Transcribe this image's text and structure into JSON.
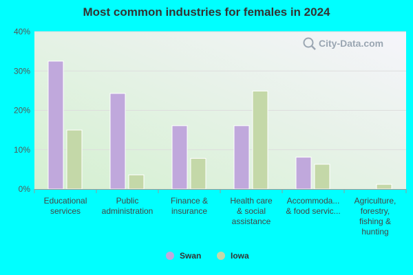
{
  "title": "Most common industries for females in 2024",
  "watermark": "City-Data.com",
  "colors": {
    "background": "#00ffff",
    "swan": "#c0a8dc",
    "iowa": "#c4d8a8",
    "grid": "#dddddd"
  },
  "chart_data": {
    "type": "bar",
    "title": "Most common industries for females in 2024",
    "xlabel": "",
    "ylabel": "",
    "ylim": [
      0,
      40
    ],
    "y_ticks": [
      "0%",
      "10%",
      "20%",
      "30%",
      "40%"
    ],
    "y_tick_values": [
      0,
      10,
      20,
      30,
      40
    ],
    "grid": true,
    "legend": "bottom",
    "categories": [
      [
        "Educational",
        "services"
      ],
      [
        "Public",
        "administration"
      ],
      [
        "Finance &",
        "insurance"
      ],
      [
        "Health care",
        "& social",
        "assistance"
      ],
      [
        "Accommoda...",
        "& food servic..."
      ],
      [
        "Agriculture,",
        "forestry,",
        "fishing &",
        "hunting"
      ]
    ],
    "series": [
      {
        "name": "Swan",
        "values": [
          32.5,
          24.3,
          16.1,
          16.1,
          8.1,
          0
        ]
      },
      {
        "name": "Iowa",
        "values": [
          15.0,
          3.6,
          7.8,
          24.9,
          6.3,
          1.2
        ]
      }
    ]
  }
}
